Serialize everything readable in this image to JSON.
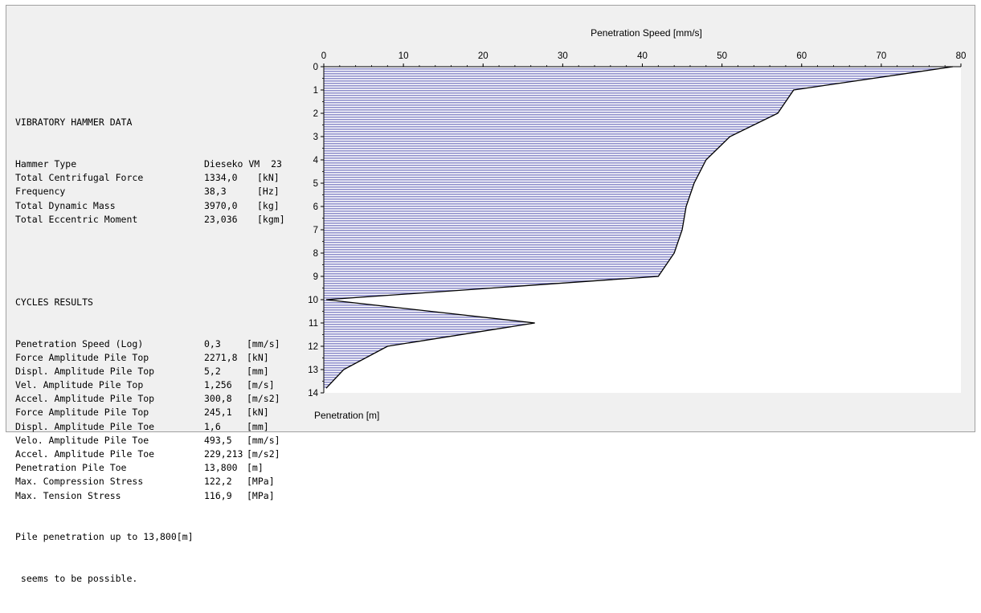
{
  "hammer": {
    "header": "VIBRATORY HAMMER DATA",
    "rows": [
      {
        "label": "Hammer Type",
        "value": "Dieseko VM  23",
        "unit": ""
      },
      {
        "label": "Total Centrifugal Force",
        "value": "1334,0",
        "unit": "[kN]"
      },
      {
        "label": "Frequency",
        "value": "38,3",
        "unit": "[Hz]"
      },
      {
        "label": "Total Dynamic Mass",
        "value": "3970,0",
        "unit": "[kg]"
      },
      {
        "label": "Total Eccentric Moment",
        "value": "23,036",
        "unit": "[kgm]"
      }
    ]
  },
  "cycles": {
    "header": "CYCLES RESULTS",
    "rows": [
      {
        "label": "Penetration Speed (Log)",
        "value": "0,3",
        "unit": "[mm/s]"
      },
      {
        "label": "Force Amplitude Pile Top",
        "value": "2271,8",
        "unit": "[kN]"
      },
      {
        "label": "Displ. Amplitude Pile Top",
        "value": "5,2",
        "unit": "[mm]"
      },
      {
        "label": "Vel. Amplitude Pile Top",
        "value": "1,256",
        "unit": "[m/s]"
      },
      {
        "label": "Accel. Amplitude Pile Top",
        "value": "300,8",
        "unit": "[m/s2]"
      },
      {
        "label": "Force Amplitude Pile Top",
        "value": "245,1",
        "unit": "[kN]"
      },
      {
        "label": "Displ. Amplitude Pile Toe",
        "value": "1,6",
        "unit": "[mm]"
      },
      {
        "label": "Velo. Amplitude Pile Toe",
        "value": "493,5",
        "unit": "[mm/s]"
      },
      {
        "label": "Accel. Amplitude Pile Toe",
        "value": "229,213",
        "unit": "[m/s2]"
      },
      {
        "label": "Penetration Pile Toe",
        "value": "13,800",
        "unit": "[m]"
      },
      {
        "label": "Max. Compression Stress",
        "value": "122,2",
        "unit": "[MPa]"
      },
      {
        "label": "Max. Tension Stress",
        "value": "116,9",
        "unit": "[MPa]"
      }
    ],
    "conclusion_line1": "Pile penetration up to 13,800[m]",
    "conclusion_line2": " seems to be possible."
  },
  "chart_data": {
    "type": "area",
    "title": "",
    "xlabel": "Penetration Speed [mm/s]",
    "ylabel": "Penetration [m]",
    "xlim": [
      0,
      80
    ],
    "ylim": [
      0,
      14
    ],
    "x_ticks": [
      "0",
      "10",
      "20",
      "30",
      "40",
      "50",
      "60",
      "70",
      "80"
    ],
    "y_ticks": [
      "0",
      "1",
      "2",
      "3",
      "4",
      "5",
      "6",
      "7",
      "8",
      "9",
      "10",
      "11",
      "12",
      "13",
      "14"
    ],
    "series": [
      {
        "points": [
          {
            "depth": 0,
            "speed": 79
          },
          {
            "depth": 1,
            "speed": 59
          },
          {
            "depth": 2,
            "speed": 57
          },
          {
            "depth": 3,
            "speed": 51
          },
          {
            "depth": 4,
            "speed": 48
          },
          {
            "depth": 5,
            "speed": 46.5
          },
          {
            "depth": 6,
            "speed": 45.5
          },
          {
            "depth": 7,
            "speed": 45
          },
          {
            "depth": 8,
            "speed": 44
          },
          {
            "depth": 9,
            "speed": 42
          },
          {
            "depth": 10,
            "speed": 0.3
          },
          {
            "depth": 11,
            "speed": 26.5
          },
          {
            "depth": 12,
            "speed": 8
          },
          {
            "depth": 13,
            "speed": 2.5
          },
          {
            "depth": 13.8,
            "speed": 0.3
          }
        ]
      }
    ],
    "fill_color": "#9090cc",
    "line_color": "#000000",
    "plot_background": "#ffffff"
  }
}
